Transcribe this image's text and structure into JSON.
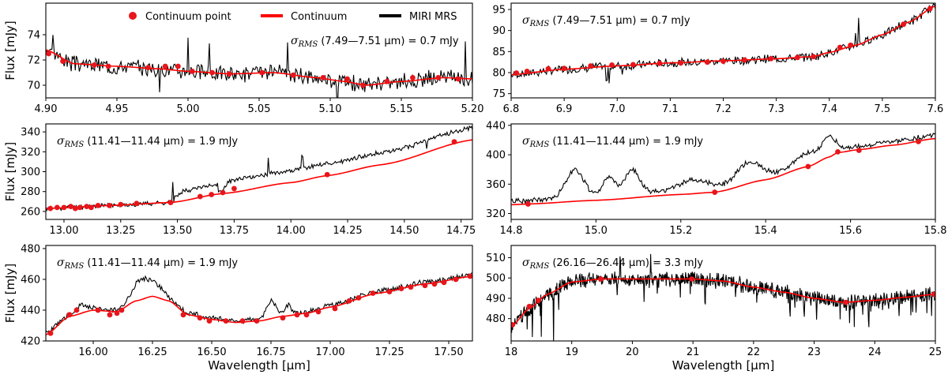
{
  "figure": {
    "legend": {
      "items": [
        {
          "label": "Continuum point",
          "kind": "marker",
          "color": "#e8151b"
        },
        {
          "label": "Continuum",
          "kind": "line",
          "color": "#ff0000"
        },
        {
          "label": "MIRI MRS",
          "kind": "line",
          "color": "#000000"
        }
      ]
    },
    "colors": {
      "data": "#000000",
      "continuum": "#ff0000",
      "points": "#e8151b"
    }
  },
  "chart_data": [
    {
      "id": "p1",
      "type": "line",
      "ylabel": "Flux [mJy]",
      "xlabel": "",
      "xlim": [
        4.9,
        5.2
      ],
      "ylim": [
        69.0,
        76.5
      ],
      "xticks": [
        "4.90",
        "4.95",
        "5.00",
        "5.05",
        "5.10",
        "5.15",
        "5.20"
      ],
      "yticks": [
        "70",
        "72",
        "74"
      ],
      "annotation": {
        "sym": "σ",
        "sub": "RMS",
        "text": " (7.49—7.51 μm) = 0.7 mJy"
      },
      "series": [
        {
          "name": "Continuum",
          "x": [
            4.9,
            4.92,
            4.95,
            4.98,
            5.0,
            5.03,
            5.06,
            5.09,
            5.11,
            5.125,
            5.15,
            5.18,
            5.2
          ],
          "y": [
            72.8,
            71.7,
            71.5,
            71.3,
            71.1,
            70.9,
            71.0,
            70.6,
            70.3,
            70.0,
            70.3,
            70.6,
            70.5
          ]
        },
        {
          "name": "Continuum point",
          "x": [
            4.902,
            4.912,
            4.934,
            4.944,
            4.972,
            4.984,
            4.993,
            5.003,
            5.017,
            5.029,
            5.052,
            5.074,
            5.095,
            5.112,
            5.123,
            5.14,
            5.158,
            5.176,
            5.19
          ],
          "y": [
            72.5,
            71.9,
            71.6,
            71.5,
            71.4,
            71.5,
            71.5,
            71.1,
            71.0,
            70.9,
            71.0,
            70.8,
            70.6,
            70.5,
            70.0,
            70.3,
            70.6,
            70.6,
            70.5
          ]
        },
        {
          "name": "MIRI MRS",
          "noise": 0.55,
          "seed": 3,
          "spikes": [
            [
              4.98,
              -2.2
            ],
            [
              5.0,
              3.0
            ],
            [
              5.015,
              2.5
            ],
            [
              5.07,
              2.2
            ],
            [
              5.105,
              -1.8
            ],
            [
              5.195,
              3.0
            ],
            [
              4.905,
              1.8
            ]
          ]
        }
      ]
    },
    {
      "id": "p2",
      "type": "line",
      "ylabel": "",
      "xlabel": "",
      "xlim": [
        6.8,
        7.6
      ],
      "ylim": [
        74,
        96.5
      ],
      "xticks": [
        "6.8",
        "6.9",
        "7.0",
        "7.1",
        "7.2",
        "7.3",
        "7.4",
        "7.5",
        "7.6"
      ],
      "yticks": [
        "75",
        "80",
        "85",
        "90",
        "95"
      ],
      "annotation": {
        "sym": "σ",
        "sub": "RMS",
        "text": " (7.49—7.51 μm) = 0.7 mJy"
      },
      "series": [
        {
          "name": "Continuum",
          "x": [
            6.8,
            6.9,
            7.0,
            7.1,
            7.2,
            7.3,
            7.37,
            7.4,
            7.45,
            7.5,
            7.55,
            7.6
          ],
          "y": [
            79.5,
            80.8,
            81.6,
            82.3,
            82.8,
            83.3,
            83.8,
            84.8,
            86.5,
            89.0,
            92.0,
            95.8
          ]
        },
        {
          "name": "Continuum point",
          "x": [
            6.81,
            6.83,
            6.87,
            6.9,
            6.95,
            6.99,
            7.03,
            7.08,
            7.12,
            7.17,
            7.2,
            7.24,
            7.29,
            7.34,
            7.37,
            7.42,
            7.44,
            7.54,
            7.59
          ],
          "y": [
            79.9,
            80.3,
            80.9,
            81.0,
            81.6,
            81.8,
            81.9,
            82.2,
            82.3,
            82.5,
            82.7,
            83.0,
            83.3,
            83.6,
            83.8,
            86.0,
            86.5,
            91.5,
            95.2
          ]
        },
        {
          "name": "MIRI MRS",
          "noise": 0.9,
          "seed": 7,
          "spikes": [
            [
              6.985,
              -5.0
            ],
            [
              6.98,
              -3.5
            ],
            [
              7.455,
              6.5
            ],
            [
              7.45,
              3.0
            ],
            [
              7.01,
              -2.0
            ]
          ]
        }
      ]
    },
    {
      "id": "p3",
      "type": "line",
      "ylabel": "Flux [mJy]",
      "xlabel": "",
      "xlim": [
        12.92,
        14.8
      ],
      "ylim": [
        252,
        348
      ],
      "xticks": [
        "13.00",
        "13.25",
        "13.50",
        "13.75",
        "14.00",
        "14.25",
        "14.50",
        "14.75"
      ],
      "yticks": [
        "260",
        "280",
        "300",
        "320",
        "340"
      ],
      "annotation": {
        "sym": "σ",
        "sub": "RMS",
        "text": " (11.41—11.44 μm) = 1.9 mJy"
      },
      "series": [
        {
          "name": "Continuum",
          "x": [
            12.92,
            13.2,
            13.47,
            13.7,
            14.0,
            14.16,
            14.4,
            14.8
          ],
          "y": [
            263.0,
            266.0,
            269.0,
            278.0,
            289.0,
            296.0,
            307.0,
            332.0
          ]
        },
        {
          "name": "Continuum point",
          "x": [
            12.94,
            12.97,
            13.0,
            13.03,
            13.05,
            13.07,
            13.1,
            13.12,
            13.15,
            13.2,
            13.25,
            13.32,
            13.47,
            13.6,
            13.65,
            13.7,
            13.75,
            14.16,
            14.72
          ],
          "y": [
            263,
            264,
            264,
            265,
            263,
            264,
            265,
            264,
            266,
            266,
            267,
            268,
            269,
            275,
            277,
            279,
            283,
            297,
            330
          ]
        },
        {
          "name": "MIRI MRS",
          "noise": 2.0,
          "seed": 11,
          "offsets": [
            [
              13.47,
              13.68,
              10
            ],
            [
              13.68,
              14.8,
              12
            ]
          ],
          "spikes": [
            [
              13.48,
              18
            ],
            [
              13.9,
              16
            ],
            [
              14.05,
              12
            ],
            [
              14.6,
              -8
            ]
          ]
        }
      ]
    },
    {
      "id": "p4",
      "type": "line",
      "ylabel": "",
      "xlabel": "",
      "xlim": [
        14.8,
        15.8
      ],
      "ylim": [
        312,
        442
      ],
      "xticks": [
        "14.8",
        "15.0",
        "15.2",
        "15.4",
        "15.6",
        "15.8"
      ],
      "yticks": [
        "320",
        "360",
        "400",
        "440"
      ],
      "annotation": {
        "sym": "σ",
        "sub": "RMS",
        "text": " (11.41—11.44 μm) = 1.9 mJy"
      },
      "series": [
        {
          "name": "Continuum",
          "x": [
            14.8,
            14.84,
            15.0,
            15.2,
            15.28,
            15.4,
            15.5,
            15.55,
            15.57,
            15.62,
            15.7,
            15.8
          ],
          "y": [
            332,
            333,
            338,
            346,
            349,
            366,
            384,
            397,
            403,
            407,
            413,
            422
          ]
        },
        {
          "name": "Continuum point",
          "x": [
            14.84,
            15.28,
            15.5,
            15.57,
            15.62,
            15.76
          ],
          "y": [
            333,
            349,
            384,
            404,
            406,
            418
          ]
        },
        {
          "name": "MIRI MRS",
          "noise": 3.0,
          "seed": 19,
          "bumps": [
            [
              14.95,
              0.03,
              38
            ],
            [
              15.03,
              0.02,
              26
            ],
            [
              15.085,
              0.025,
              34
            ],
            [
              15.23,
              0.05,
              14
            ],
            [
              15.36,
              0.04,
              24
            ],
            [
              15.55,
              0.02,
              20
            ],
            [
              15.5,
              0.04,
              14
            ]
          ],
          "baseline_offset": 14
        }
      ]
    },
    {
      "id": "p5",
      "type": "line",
      "ylabel": "Flux [mJy]",
      "xlabel": "Wavelength [μm]",
      "xlim": [
        15.8,
        17.6
      ],
      "ylim": [
        420,
        482
      ],
      "xticks": [
        "16.00",
        "16.25",
        "16.50",
        "16.75",
        "17.00",
        "17.25",
        "17.50"
      ],
      "yticks": [
        "420",
        "440",
        "460",
        "480"
      ],
      "annotation": {
        "sym": "σ",
        "sub": "RMS",
        "text": " (11.41—11.44 μm) = 1.9 mJy"
      },
      "series": [
        {
          "name": "Continuum",
          "x": [
            15.8,
            15.9,
            16.0,
            16.1,
            16.18,
            16.25,
            16.32,
            16.4,
            16.5,
            16.6,
            16.7,
            16.8,
            16.9,
            17.0,
            17.2,
            17.4,
            17.6
          ],
          "y": [
            424,
            436,
            440,
            439,
            446,
            449,
            446,
            437,
            434,
            432,
            433,
            436,
            438,
            442,
            451,
            457,
            462
          ]
        },
        {
          "name": "Continuum point",
          "x": [
            15.82,
            15.9,
            15.93,
            16.02,
            16.07,
            16.1,
            16.12,
            16.38,
            16.45,
            16.49,
            16.56,
            16.63,
            16.69,
            16.8,
            16.86,
            16.9,
            16.95,
            17.02,
            17.08,
            17.12,
            17.18,
            17.25,
            17.3,
            17.34,
            17.4,
            17.44,
            17.48,
            17.53,
            17.59
          ],
          "y": [
            425,
            437,
            440,
            440,
            437,
            438,
            440,
            437,
            435,
            433,
            433,
            433,
            433,
            435,
            437,
            437,
            439,
            441,
            446,
            448,
            451,
            452,
            454,
            455,
            456,
            457,
            458,
            460,
            462
          ]
        },
        {
          "name": "MIRI MRS",
          "noise": 1.6,
          "seed": 23,
          "bumps": [
            [
              16.2,
              0.05,
              12
            ],
            [
              16.27,
              0.04,
              6
            ],
            [
              16.75,
              0.03,
              10
            ],
            [
              16.82,
              0.02,
              6
            ],
            [
              15.95,
              0.03,
              4
            ]
          ],
          "baseline_offset": 3
        }
      ]
    },
    {
      "id": "p6",
      "type": "line",
      "ylabel": "",
      "xlabel": "Wavelength [μm]",
      "xlim": [
        18.0,
        25.0
      ],
      "ylim": [
        469,
        516
      ],
      "xticks": [
        "18",
        "19",
        "20",
        "21",
        "22",
        "23",
        "24",
        "25"
      ],
      "yticks": [
        "480",
        "490",
        "500",
        "510"
      ],
      "annotation": {
        "sym": "σ",
        "sub": "RMS",
        "text": " (26.16—26.44 μm) = 3.3 mJy"
      },
      "series": [
        {
          "name": "Continuum",
          "x": [
            18.0,
            18.3,
            18.6,
            19.0,
            19.5,
            20.0,
            20.5,
            21.0,
            21.5,
            22.0,
            22.5,
            23.0,
            23.5,
            24.0,
            24.5,
            25.0
          ],
          "y": [
            476,
            485,
            492,
            498,
            499.5,
            499.5,
            499.5,
            499.5,
            498.5,
            495.5,
            493.0,
            490.0,
            488.0,
            489.0,
            490.5,
            492.0
          ]
        },
        {
          "name": "Continuum point",
          "x": [
            18.02,
            18.3,
            18.45,
            19.48,
            20.98,
            23.52,
            24.98
          ],
          "y": [
            477,
            486,
            489,
            499.5,
            499.5,
            488,
            492
          ]
        },
        {
          "name": "MIRI MRS",
          "noise": 3.2,
          "seed": 31,
          "dense": true,
          "spikes": [
            [
              18.7,
              -28
            ],
            [
              18.35,
              -15
            ],
            [
              18.5,
              -12
            ],
            [
              19.8,
              10
            ],
            [
              20.3,
              9
            ],
            [
              21.2,
              -10
            ],
            [
              22.6,
              -9
            ],
            [
              23.9,
              -12
            ],
            [
              24.4,
              -10
            ]
          ]
        }
      ]
    }
  ]
}
